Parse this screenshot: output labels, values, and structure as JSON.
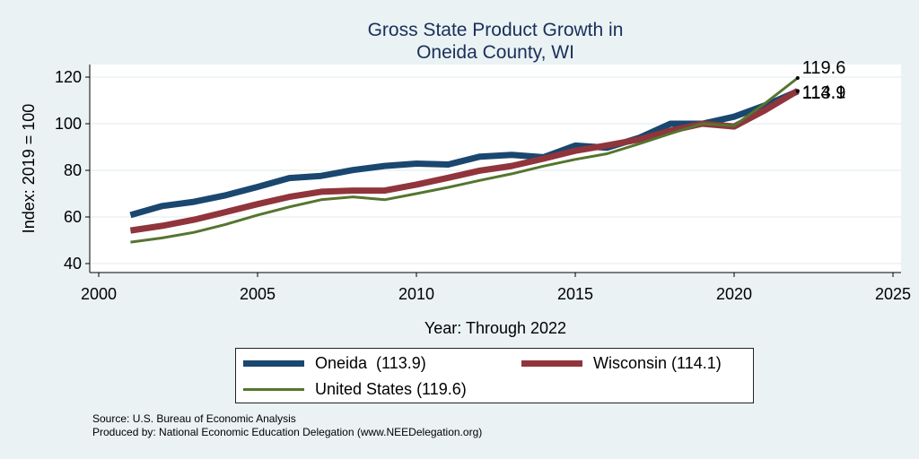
{
  "chart_data": {
    "type": "line",
    "title": [
      "Gross State Product Growth in",
      "Oneida County, WI"
    ],
    "xlabel": "Year: Through 2022",
    "ylabel": "Index: 2019 = 100",
    "xlim": [
      2000,
      2025
    ],
    "ylim": [
      40,
      120
    ],
    "xticks": [
      2000,
      2005,
      2010,
      2015,
      2020,
      2025
    ],
    "yticks": [
      40,
      60,
      80,
      100,
      120
    ],
    "grid": "horizontal",
    "x": [
      2001,
      2002,
      2003,
      2004,
      2005,
      2006,
      2007,
      2008,
      2009,
      2010,
      2011,
      2012,
      2013,
      2014,
      2015,
      2016,
      2017,
      2018,
      2019,
      2020,
      2021,
      2022
    ],
    "series": [
      {
        "name": "Oneida",
        "color": "#1a476f",
        "values": [
          60.8,
          64.7,
          66.5,
          69.3,
          72.9,
          76.7,
          77.6,
          80.1,
          81.9,
          82.9,
          82.5,
          85.9,
          86.6,
          85.6,
          90.6,
          89.7,
          93.9,
          100.0,
          100.0,
          103.0,
          108.0,
          113.9
        ],
        "end_label": "113.9"
      },
      {
        "name": "Wisconsin",
        "color": "#90353b",
        "values": [
          54.2,
          56.2,
          58.8,
          62.1,
          65.5,
          68.6,
          70.8,
          71.3,
          71.3,
          73.9,
          76.8,
          79.9,
          81.9,
          85.0,
          88.4,
          90.7,
          93.2,
          97.0,
          100.0,
          98.8,
          106.0,
          114.1
        ],
        "end_label": "114.1"
      },
      {
        "name": "United States",
        "color": "#55752f",
        "values": [
          49.2,
          51.0,
          53.4,
          56.8,
          60.8,
          64.3,
          67.4,
          68.6,
          67.4,
          70.0,
          72.7,
          75.7,
          78.5,
          81.8,
          84.7,
          87.1,
          91.3,
          95.8,
          100.0,
          99.1,
          109.0,
          119.6
        ],
        "end_label": "119.6"
      }
    ],
    "legend": {
      "oneida": "Oneida  (113.9)",
      "wisconsin": "Wisconsin (114.1)",
      "us": "United States (119.6)",
      "placement": "bottom"
    }
  },
  "notes": {
    "source": "Source: U.S. Bureau of Economic Analysis",
    "produced": "Produced by: National Economic Education Delegation (www.NEEDelegation.org)"
  }
}
